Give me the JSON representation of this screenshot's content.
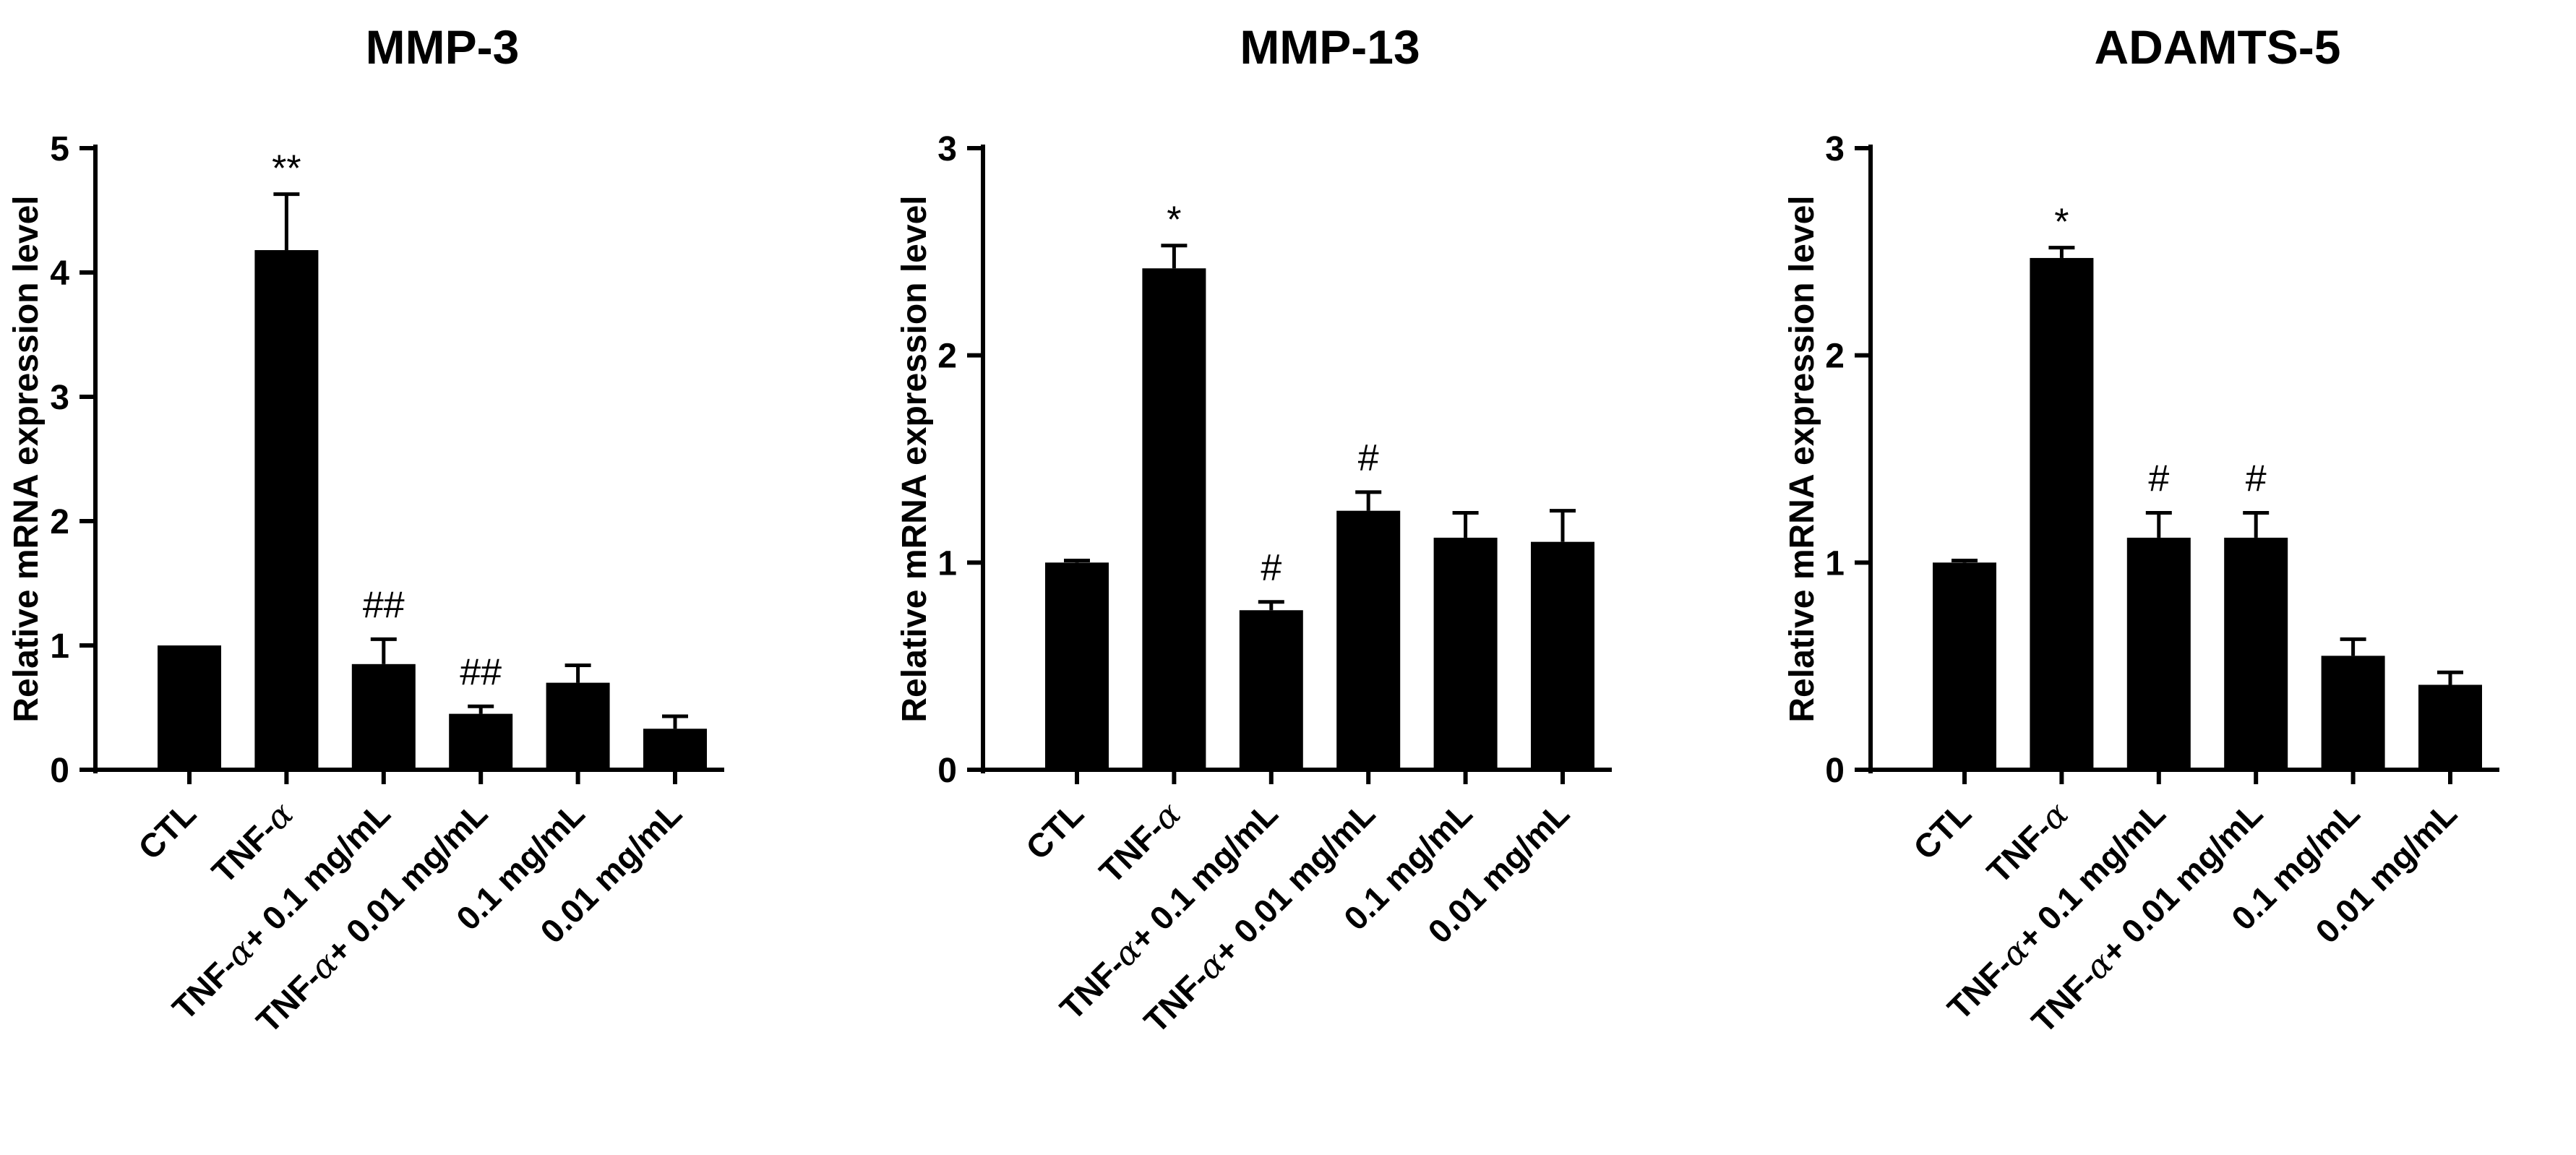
{
  "colors": {
    "bar": "#000000",
    "axis": "#000000",
    "background": "#ffffff"
  },
  "chart_data": [
    {
      "type": "bar",
      "title": "MMP-3",
      "ylabel": "Relative mRNA expression level",
      "xlabel": "",
      "ylim": [
        0,
        5
      ],
      "yticks": [
        0,
        1,
        2,
        3,
        4,
        5
      ],
      "grid": false,
      "categories": [
        "CTL",
        "TNF-α",
        "TNF-α+ 0.1 mg/mL",
        "TNF-α+ 0.01 mg/mL",
        "0.1 mg/mL",
        "0.01 mg/mL"
      ],
      "values": [
        1.0,
        4.18,
        0.85,
        0.45,
        0.7,
        0.33
      ],
      "errors": [
        0.0,
        0.45,
        0.2,
        0.06,
        0.14,
        0.1
      ],
      "annotations": [
        "",
        "**",
        "##",
        "##",
        "",
        ""
      ]
    },
    {
      "type": "bar",
      "title": "MMP-13",
      "ylabel": "Relative mRNA expression level",
      "xlabel": "",
      "ylim": [
        0,
        3
      ],
      "yticks": [
        0,
        1,
        2,
        3
      ],
      "grid": false,
      "categories": [
        "CTL",
        "TNF-α",
        "TNF-α+ 0.1 mg/mL",
        "TNF-α+ 0.01 mg/mL",
        "0.1 mg/mL",
        "0.01 mg/mL"
      ],
      "values": [
        1.0,
        2.42,
        0.77,
        1.25,
        1.12,
        1.1
      ],
      "errors": [
        0.01,
        0.11,
        0.04,
        0.09,
        0.12,
        0.15
      ],
      "annotations": [
        "",
        "*",
        "#",
        "#",
        "",
        ""
      ]
    },
    {
      "type": "bar",
      "title": "ADAMTS-5",
      "ylabel": "Relative mRNA expression level",
      "xlabel": "",
      "ylim": [
        0,
        3
      ],
      "yticks": [
        0,
        1,
        2,
        3
      ],
      "grid": false,
      "categories": [
        "CTL",
        "TNF-α",
        "TNF-α+ 0.1 mg/mL",
        "TNF-α+ 0.01 mg/mL",
        "0.1 mg/mL",
        "0.01 mg/mL"
      ],
      "values": [
        1.0,
        2.47,
        1.12,
        1.12,
        0.55,
        0.41
      ],
      "errors": [
        0.01,
        0.05,
        0.12,
        0.12,
        0.08,
        0.06
      ],
      "annotations": [
        "",
        "*",
        "#",
        "#",
        "",
        ""
      ]
    }
  ]
}
